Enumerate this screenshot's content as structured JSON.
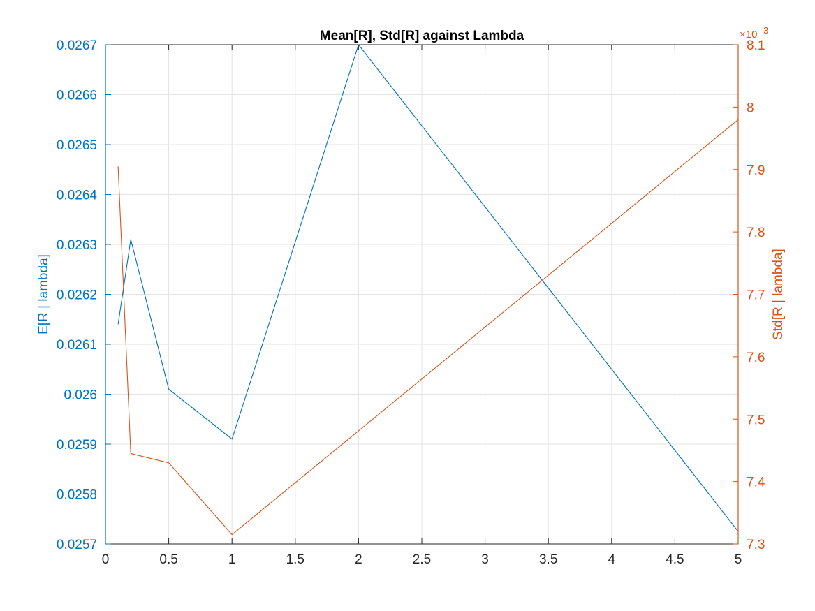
{
  "chart_data": {
    "type": "line",
    "title": "Mean[R], Std[R] against Lambda",
    "xlabel": "",
    "xlim": [
      0,
      5
    ],
    "x_ticks": [
      0,
      0.5,
      1,
      1.5,
      2,
      2.5,
      3,
      3.5,
      4,
      4.5,
      5
    ],
    "x_tick_labels": [
      "0",
      "0.5",
      "1",
      "1.5",
      "2",
      "2.5",
      "3",
      "3.5",
      "4",
      "4.5",
      "5"
    ],
    "grid": true,
    "left_axis": {
      "label": "E[R | lambda]",
      "color": "#0072BD",
      "ylim": [
        0.0257,
        0.0267
      ],
      "ticks": [
        0.0257,
        0.0258,
        0.0259,
        0.026,
        0.0261,
        0.0262,
        0.0263,
        0.0264,
        0.0265,
        0.0266,
        0.0267
      ],
      "tick_labels": [
        "0.0257",
        "0.0258",
        "0.0259",
        "0.026",
        "0.0261",
        "0.0262",
        "0.0263",
        "0.0264",
        "0.0265",
        "0.0266",
        "0.0267"
      ]
    },
    "right_axis": {
      "label": "Std[R | lambda]",
      "color": "#D95319",
      "exponent_label": "×10",
      "exponent_power": "-3",
      "ylim": [
        7.3,
        8.1
      ],
      "ticks": [
        7.3,
        7.4,
        7.5,
        7.6,
        7.7,
        7.8,
        7.9,
        8.0,
        8.1
      ],
      "tick_labels": [
        "7.3",
        "7.4",
        "7.5",
        "7.6",
        "7.7",
        "7.8",
        "7.9",
        "8",
        "8.1"
      ]
    },
    "series": [
      {
        "axis": "left",
        "color": "#0072BD",
        "x": [
          0.1,
          0.2,
          0.5,
          1,
          2,
          5
        ],
        "y": [
          0.02614,
          0.02631,
          0.02601,
          0.02591,
          0.0267,
          0.025725
        ]
      },
      {
        "axis": "right",
        "color": "#D95319",
        "x": [
          0.1,
          0.2,
          0.5,
          1,
          5
        ],
        "y": [
          7.905,
          7.445,
          7.43,
          7.315,
          7.98
        ]
      }
    ]
  }
}
